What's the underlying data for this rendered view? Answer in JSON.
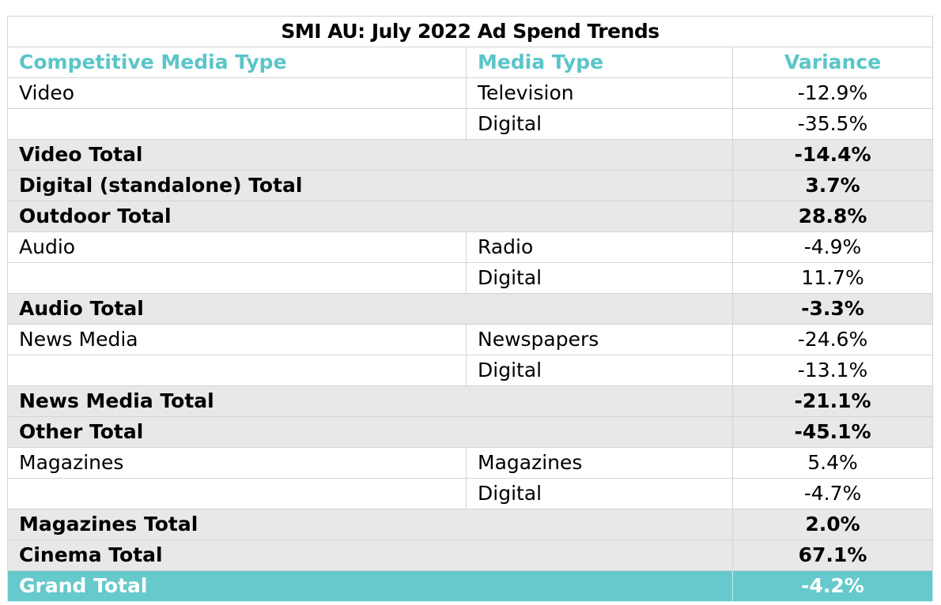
{
  "chart_data": {
    "type": "table",
    "title": "SMI AU: July 2022 Ad Spend Trends",
    "columns": [
      "Competitive Media Type",
      "Media Type",
      "Variance"
    ],
    "rows": [
      {
        "kind": "detail",
        "competitive": "Video",
        "media": "Television",
        "variance": "-12.9%"
      },
      {
        "kind": "detail",
        "competitive": "",
        "media": "Digital",
        "variance": "-35.5%"
      },
      {
        "kind": "total",
        "competitive": "Video Total",
        "media": "",
        "variance": "-14.4%"
      },
      {
        "kind": "total",
        "competitive": "Digital (standalone) Total",
        "media": "",
        "variance": "3.7%"
      },
      {
        "kind": "total",
        "competitive": "Outdoor Total",
        "media": "",
        "variance": "28.8%"
      },
      {
        "kind": "detail",
        "competitive": "Audio",
        "media": "Radio",
        "variance": "-4.9%"
      },
      {
        "kind": "detail",
        "competitive": "",
        "media": "Digital",
        "variance": "11.7%"
      },
      {
        "kind": "total",
        "competitive": "Audio Total",
        "media": "",
        "variance": "-3.3%"
      },
      {
        "kind": "detail",
        "competitive": "News Media",
        "media": "Newspapers",
        "variance": "-24.6%"
      },
      {
        "kind": "detail",
        "competitive": "",
        "media": "Digital",
        "variance": "-13.1%"
      },
      {
        "kind": "total",
        "competitive": "News Media Total",
        "media": "",
        "variance": "-21.1%"
      },
      {
        "kind": "total",
        "competitive": "Other Total",
        "media": "",
        "variance": "-45.1%"
      },
      {
        "kind": "detail",
        "competitive": "Magazines",
        "media": "Magazines",
        "variance": "5.4%"
      },
      {
        "kind": "detail",
        "competitive": "",
        "media": "Digital",
        "variance": "-4.7%"
      },
      {
        "kind": "total",
        "competitive": "Magazines Total",
        "media": "",
        "variance": "2.0%"
      },
      {
        "kind": "total",
        "competitive": "Cinema Total",
        "media": "",
        "variance": "67.1%"
      },
      {
        "kind": "grand",
        "competitive": "Grand Total",
        "media": "",
        "variance": "-4.2%"
      }
    ]
  },
  "colors": {
    "header_text": "#5bc5c8",
    "total_row_bg": "#e8e8e8",
    "grand_total_bg": "#66c9cb",
    "grand_total_text": "#ffffff",
    "border": "#d4d4d4"
  }
}
